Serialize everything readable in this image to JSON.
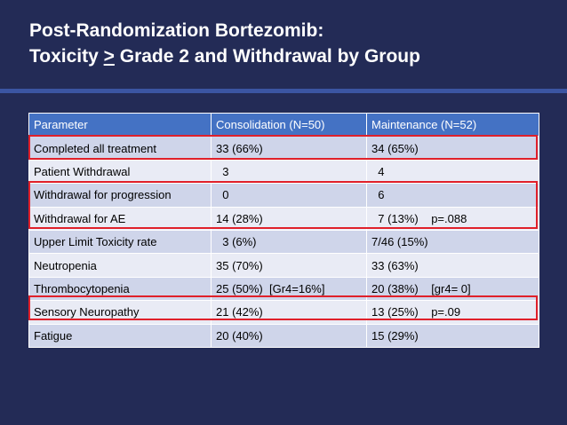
{
  "title": {
    "line1": "Post-Randomization Bortezomib:",
    "line2_prefix": "Toxicity ",
    "line2_symbol": ">",
    "line2_suffix": " Grade 2 and Withdrawal by Group"
  },
  "table": {
    "headers": [
      "Parameter",
      "Consolidation (N=50)",
      "Maintenance (N=52)"
    ],
    "rows": [
      [
        "Completed all treatment",
        "33 (66%)",
        "34 (65%)"
      ],
      [
        "Patient Withdrawal",
        "  3",
        "  4"
      ],
      [
        "Withdrawal for progression",
        "  0",
        "  6"
      ],
      [
        "Withdrawal for AE",
        "14 (28%)",
        "  7 (13%)    p=.088"
      ],
      [
        "Upper Limit Toxicity rate",
        "  3 (6%)",
        "7/46 (15%)"
      ],
      [
        "Neutropenia",
        "35 (70%)",
        "33 (63%)"
      ],
      [
        "Thrombocytopenia",
        "25 (50%)  [Gr4=16%]",
        "20 (38%)    [gr4= 0]"
      ],
      [
        "Sensory Neuropathy",
        "21 (42%)",
        "13 (25%)    p=.09"
      ],
      [
        "Fatigue",
        "20 (40%)",
        "15 (29%)"
      ]
    ]
  },
  "colors": {
    "background": "#232b56",
    "header_fill": "#4472c4",
    "row_odd": "#cfd5ea",
    "row_even": "#e9ebf5",
    "highlight_border": "#e0202a"
  }
}
